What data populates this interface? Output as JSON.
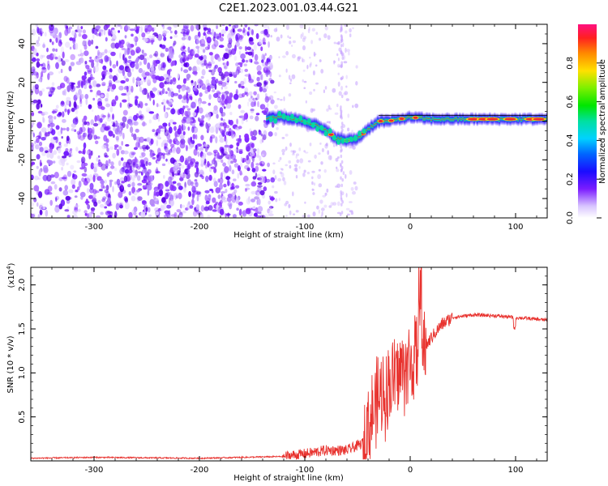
{
  "title": "C2E1.2023.001.03.44.G21",
  "colors": {
    "spectrum_core": "#e8263a",
    "spectrum_mid": "#00d36a",
    "spectrum_edge": "#3b00ff",
    "scatter": "#7a1cff",
    "snr_line": "#e8322e"
  },
  "chart_data": [
    {
      "type": "heatmap",
      "xlabel": "Height of straight line (km)",
      "ylabel": "Frequency (Hz)",
      "xlim": [
        -360,
        130
      ],
      "ylim": [
        -50,
        50
      ],
      "xticks": [
        "-300",
        "-200",
        "-100",
        "0",
        "100"
      ],
      "yticks": [
        "40",
        "20",
        "0",
        "-20",
        "-40"
      ],
      "grid": false,
      "colorbar": {
        "label": "Normalized spectral amplitude",
        "range": [
          0,
          1
        ],
        "ticks": [
          "0.0",
          "0.2",
          "0.4",
          "0.6",
          "0.8"
        ]
      },
      "ridge": [
        {
          "x": -135,
          "y": 2
        },
        {
          "x": -120,
          "y": 2
        },
        {
          "x": -110,
          "y": 1
        },
        {
          "x": -100,
          "y": 0
        },
        {
          "x": -90,
          "y": -2
        },
        {
          "x": -80,
          "y": -5
        },
        {
          "x": -70,
          "y": -9
        },
        {
          "x": -60,
          "y": -10
        },
        {
          "x": -50,
          "y": -9
        },
        {
          "x": -40,
          "y": -4
        },
        {
          "x": -30,
          "y": 0
        },
        {
          "x": -20,
          "y": 0
        },
        {
          "x": -10,
          "y": 1
        },
        {
          "x": 0,
          "y": 2
        },
        {
          "x": 20,
          "y": 1
        },
        {
          "x": 50,
          "y": 1
        },
        {
          "x": 80,
          "y": 1
        },
        {
          "x": 100,
          "y": 1
        },
        {
          "x": 130,
          "y": 1
        }
      ]
    },
    {
      "type": "line",
      "xlabel": "Height of straight line (km)",
      "ylabel": "SNR (10 * v/v)",
      "yscale_label": "(x10",
      "yscale_exp": "4",
      "yscale_close": ")",
      "xlim": [
        -360,
        130
      ],
      "ylim": [
        0,
        2.2
      ],
      "xticks": [
        "-300",
        "-200",
        "-100",
        "0",
        "100"
      ],
      "yticks": [
        "0.5",
        "1.0",
        "1.5",
        "2.0"
      ],
      "grid": false,
      "series": [
        {
          "x": [
            -360,
            -300,
            -200,
            -120,
            -100,
            -80,
            -60,
            -45,
            -40,
            -30,
            -20,
            -15,
            -10,
            -5,
            0,
            10,
            20,
            30,
            40,
            60,
            80,
            100,
            130
          ],
          "y": [
            0.03,
            0.04,
            0.03,
            0.05,
            0.08,
            0.12,
            0.12,
            0.2,
            0.4,
            0.7,
            0.85,
            0.95,
            1.0,
            1.05,
            1.1,
            1.2,
            1.4,
            1.55,
            1.63,
            1.66,
            1.65,
            1.63,
            1.6
          ]
        }
      ]
    }
  ]
}
